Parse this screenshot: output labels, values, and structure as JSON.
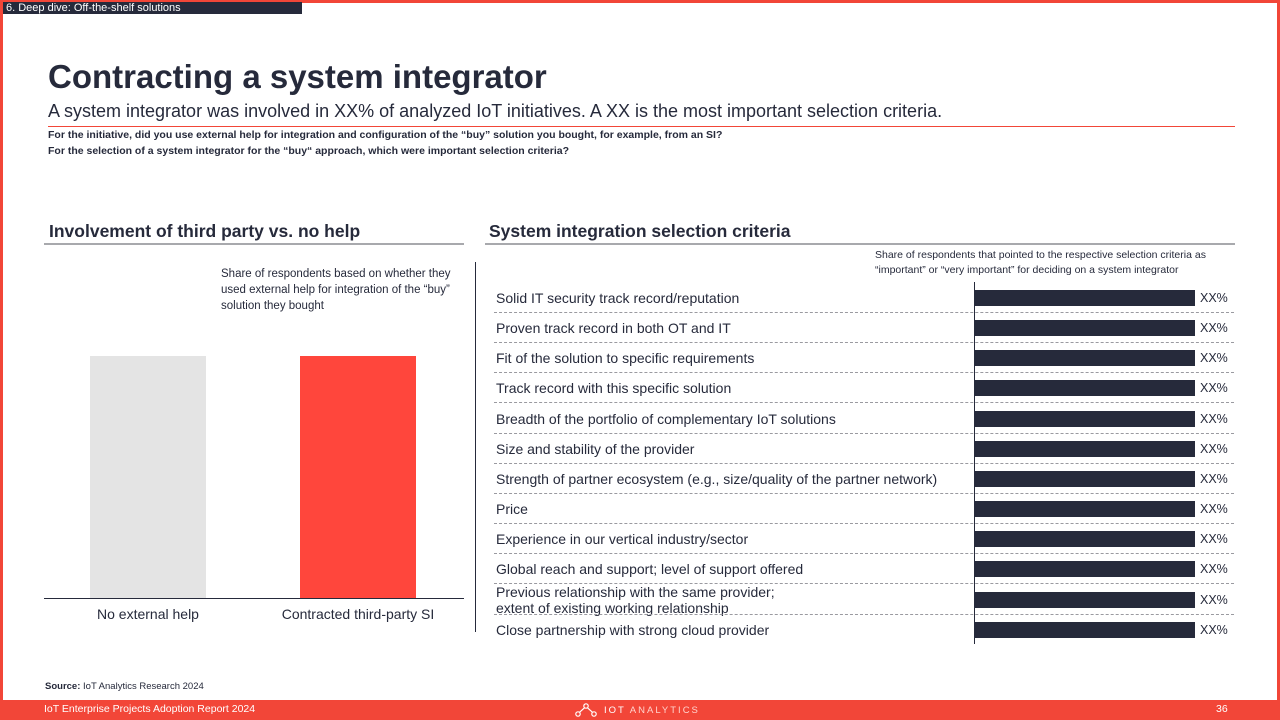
{
  "section_tag": "6. Deep dive: Off-the-shelf solutions",
  "title": "Contracting a system integrator",
  "subtitle": "A system integrator was involved in XX% of analyzed IoT initiatives. A XX is the most important selection criteria.",
  "questions": [
    "For the initiative, did you use external help for integration and configuration of the “buy” solution you bought, for example, from an SI?",
    "For the selection of a system integrator for the “buy“ approach, which were important selection criteria?"
  ],
  "left_panel": {
    "title": "Involvement of third party vs. no help",
    "note": "Share of respondents based on whether they used external help for integration of the “buy” solution they bought"
  },
  "right_panel": {
    "title": "System integration selection criteria",
    "note": "Share of respondents that pointed to the respective selection criteria as “important” or “very important” for deciding on a system integrator"
  },
  "chart_data": [
    {
      "type": "bar",
      "title": "Involvement of third party vs. no help",
      "categories": [
        "No external help",
        "Contracted third-party SI"
      ],
      "values": [
        100,
        100
      ],
      "value_labels_note": "values are placeholders; equal bar heights shown",
      "colors": [
        "#e4e4e4",
        "#ff463c"
      ]
    },
    {
      "type": "bar",
      "orientation": "horizontal",
      "title": "System integration selection criteria",
      "categories": [
        "Solid IT security track record/reputation",
        "Proven track record in both OT and IT",
        "Fit of the solution to specific requirements",
        "Track record with this specific solution",
        "Breadth of the portfolio of complementary IoT solutions",
        "Size and stability of the provider",
        "Strength of partner ecosystem (e.g., size/quality of the partner network)",
        "Price",
        "Experience in our vertical industry/sector",
        "Global reach and support; level of support offered",
        "Previous relationship with the same provider; extent of existing working relationship",
        "Close partnership with strong cloud provider"
      ],
      "values": [
        100,
        100,
        100,
        100,
        100,
        100,
        100,
        100,
        100,
        100,
        100,
        100
      ],
      "labels": [
        "XX%",
        "XX%",
        "XX%",
        "XX%",
        "XX%",
        "XX%",
        "XX%",
        "XX%",
        "XX%",
        "XX%",
        "XX%",
        "XX%"
      ],
      "color": "#262a3b"
    }
  ],
  "source_label": "Source:",
  "source_text": "IoT Analytics Research 2024",
  "footer": {
    "report": "IoT Enterprise Projects Adoption Report 2024",
    "logo_bold": "IOT",
    "logo_thin": "ANALYTICS",
    "logo_icon": "iot-analytics-logo-icon",
    "page": "36"
  },
  "colors": {
    "accent": "#f24638",
    "dark": "#262a3b",
    "light_bar": "#e4e4e4",
    "red_bar": "#ff463c"
  }
}
